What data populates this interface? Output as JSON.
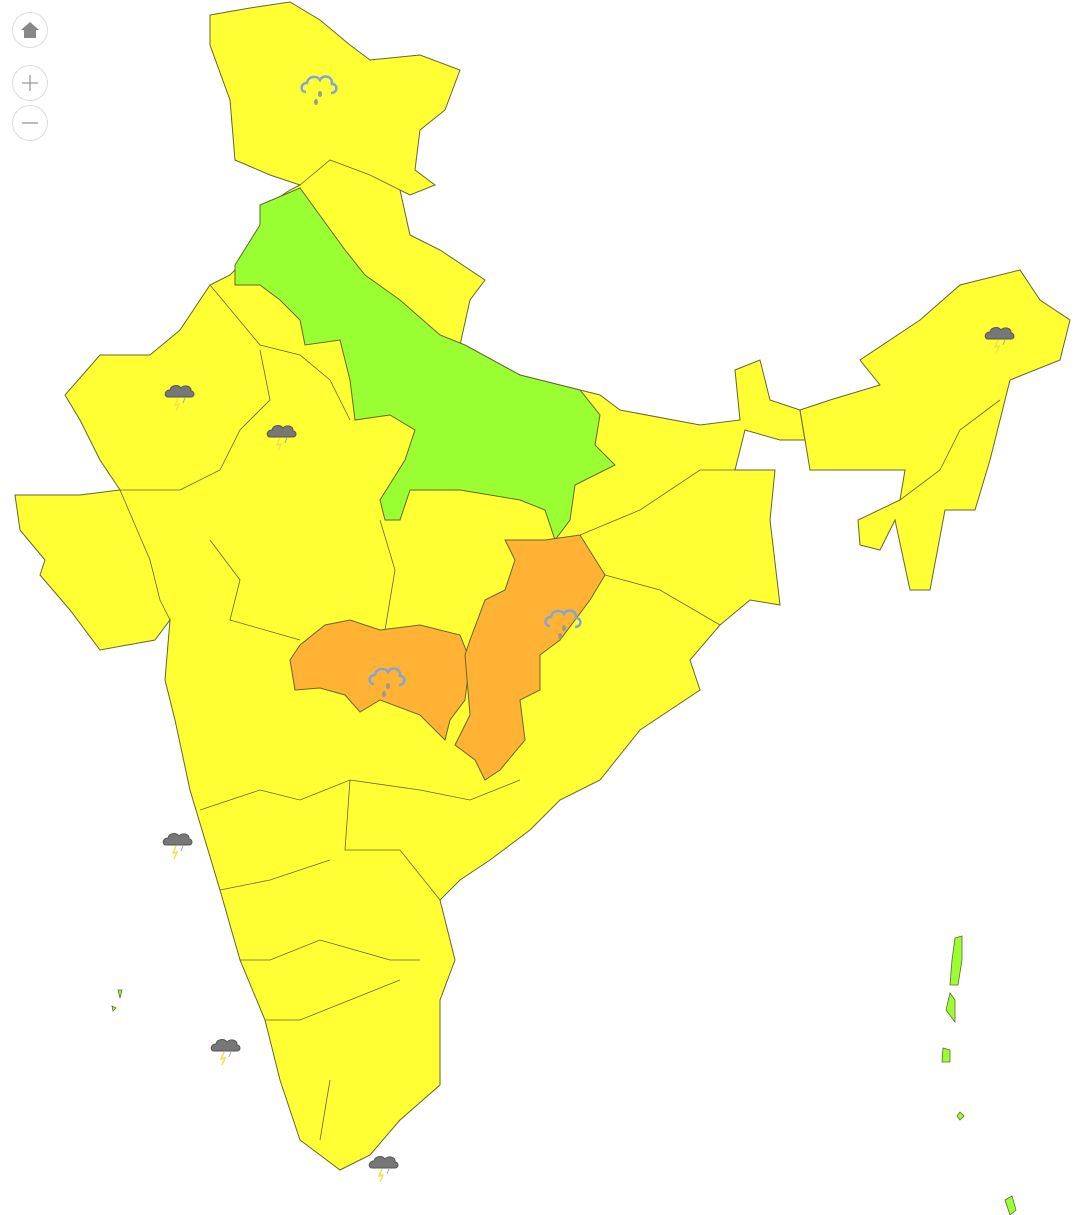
{
  "map": {
    "legend_colors": {
      "yellow_alert": "#FFFF33",
      "green_alert": "#99FF33",
      "orange_alert": "#FFB233",
      "border": "#666633"
    },
    "controls": [
      {
        "icon": "home-icon"
      },
      {
        "icon": "zoom-in-icon"
      },
      {
        "icon": "zoom-out-icon"
      }
    ],
    "weather_icons": [
      {
        "icon": "rain-cloud-icon",
        "region": "north"
      },
      {
        "icon": "rain-cloud-icon",
        "region": "central-east"
      },
      {
        "icon": "rain-cloud-icon",
        "region": "central"
      },
      {
        "icon": "thunderstorm-icon",
        "region": "west"
      },
      {
        "icon": "thunderstorm-icon",
        "region": "north-west"
      },
      {
        "icon": "thunderstorm-icon",
        "region": "west-coast"
      },
      {
        "icon": "thunderstorm-icon",
        "region": "sea-south-west"
      },
      {
        "icon": "thunderstorm-icon",
        "region": "south"
      },
      {
        "icon": "thunderstorm-icon",
        "region": "north-east"
      }
    ]
  }
}
